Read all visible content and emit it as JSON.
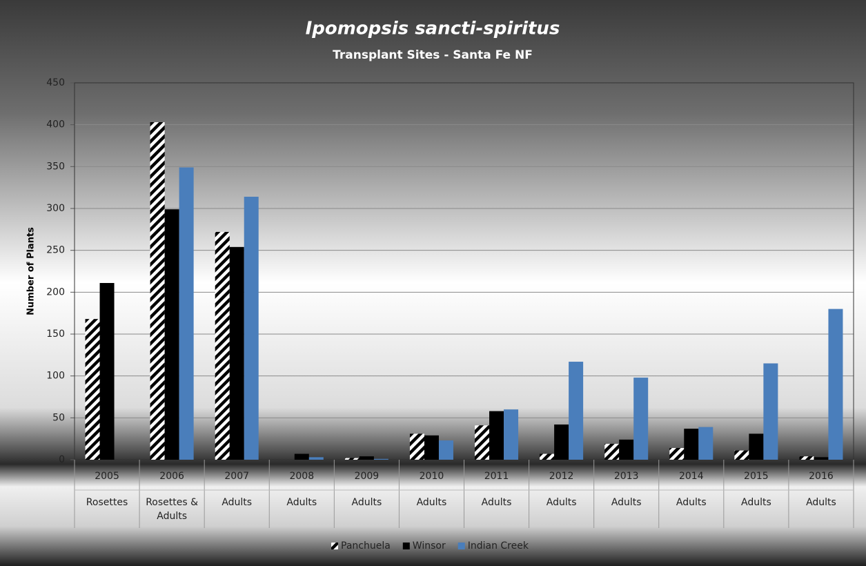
{
  "chart_data": {
    "type": "bar",
    "title": "Ipomopsis sancti-spiritus",
    "subtitle": "Transplant Sites - Santa Fe NF",
    "y_label": "Number of Plants",
    "categories": [
      "2005",
      "2006",
      "2007",
      "2008",
      "2009",
      "2010",
      "2011",
      "2012",
      "2013",
      "2014",
      "2015",
      "2016"
    ],
    "subcategories": [
      "Rosettes",
      "Rosettes & Adults",
      "Adults",
      "Adults",
      "Adults",
      "Adults",
      "Adults",
      "Adults",
      "Adults",
      "Adults",
      "Adults",
      "Adults"
    ],
    "series": [
      {
        "name": "Panchuela",
        "color": "#000000",
        "pattern": "diagonal-hatch",
        "values": [
          168,
          403,
          272,
          0,
          2,
          31,
          41,
          7,
          19,
          14,
          11,
          4
        ]
      },
      {
        "name": "Winsor",
        "color": "#000000",
        "values": [
          211,
          299,
          254,
          7,
          4,
          29,
          58,
          42,
          24,
          37,
          31,
          3
        ]
      },
      {
        "name": "Indian Creek",
        "color": "#4a7ebb",
        "values": [
          null,
          349,
          314,
          3,
          1,
          23,
          60,
          117,
          98,
          39,
          115,
          180
        ]
      }
    ],
    "ylim": [
      0,
      450
    ],
    "yticks": [
      0,
      50,
      100,
      150,
      200,
      250,
      300,
      350,
      400,
      450
    ],
    "grid": true,
    "legend": "bottom"
  }
}
